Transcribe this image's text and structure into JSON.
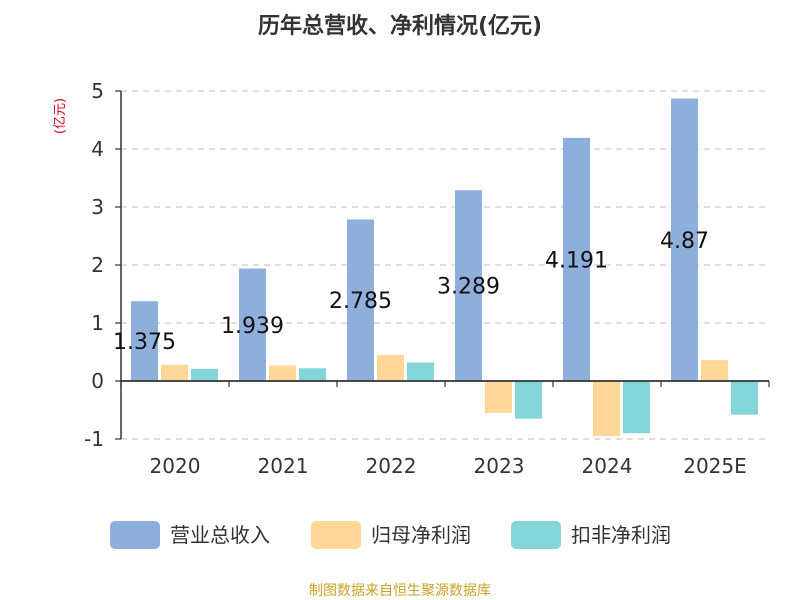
{
  "chart_data": {
    "type": "bar",
    "title": "历年总营收、净利情况(亿元)",
    "unit_label": "(亿元)",
    "categories": [
      "2020",
      "2021",
      "2022",
      "2023",
      "2024",
      "2025E"
    ],
    "series": [
      {
        "name": "营业总收入",
        "values": [
          1.375,
          1.939,
          2.785,
          3.289,
          4.191,
          4.87
        ],
        "labels": [
          "1.375",
          "1.939",
          "2.785",
          "3.289",
          "4.191",
          "4.87"
        ]
      },
      {
        "name": "归母净利润",
        "values": [
          0.28,
          0.27,
          0.45,
          -0.55,
          -0.95,
          0.36
        ]
      },
      {
        "name": "扣非净利润",
        "values": [
          0.21,
          0.22,
          0.32,
          -0.65,
          -0.9,
          -0.58
        ]
      }
    ],
    "ylim": [
      -1,
      5
    ],
    "yticks": [
      "-1",
      "0",
      "1",
      "2",
      "3",
      "4",
      "5"
    ],
    "grid": true,
    "legend_position": "bottom",
    "colors": [
      "#8eaedc",
      "#ffd799",
      "#83d5d8"
    ],
    "source": "制图数据来自恒生聚源数据库"
  }
}
